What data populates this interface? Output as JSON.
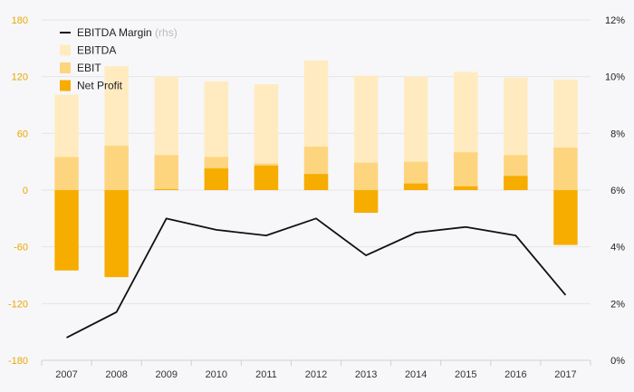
{
  "chart_data": {
    "type": "bar",
    "categories": [
      "2007",
      "2008",
      "2009",
      "2010",
      "2011",
      "2012",
      "2013",
      "2014",
      "2015",
      "2016",
      "2017"
    ],
    "series": [
      {
        "name": "EBITDA",
        "type": "bar",
        "axis": "left",
        "color": "#ffebbf",
        "values": [
          101,
          131,
          120,
          115,
          112,
          137,
          121,
          120,
          125,
          119,
          117
        ]
      },
      {
        "name": "EBIT",
        "type": "bar",
        "axis": "left",
        "color": "#fed57f",
        "values": [
          35,
          47,
          37,
          35,
          28,
          46,
          29,
          30,
          40,
          37,
          45
        ]
      },
      {
        "name": "Net Profit",
        "type": "bar",
        "axis": "left",
        "color": "#f7ac00",
        "values": [
          -85,
          -92,
          1,
          23,
          26,
          17,
          -24,
          7,
          4,
          15,
          -58
        ]
      },
      {
        "name": "EBITDA Margin",
        "note": "(rhs)",
        "type": "line",
        "axis": "right",
        "color": "#111111",
        "values": [
          0.8,
          1.7,
          5.0,
          4.6,
          4.4,
          5.0,
          3.7,
          4.5,
          4.7,
          4.4,
          2.3
        ]
      }
    ],
    "legend_order": [
      3,
      0,
      1,
      2
    ],
    "left_axis": {
      "ylim": [
        -180,
        180
      ],
      "ticks": [
        180,
        120,
        60,
        0,
        -60,
        -120,
        -180
      ],
      "tick_labels": [
        "180",
        "120",
        "60",
        "0",
        "-60",
        "-120",
        "-180"
      ]
    },
    "right_axis": {
      "ylim": [
        0,
        12
      ],
      "ticks": [
        12,
        10,
        8,
        6,
        4,
        2,
        0
      ],
      "tick_labels": [
        "12%",
        "10%",
        "8%",
        "6%",
        "4%",
        "2%",
        "0%"
      ]
    },
    "grid": true,
    "legend_position": "top-left",
    "colors": {
      "left_tick": "#e8a800",
      "right_tick": "#222222",
      "grid": "#e6e6e6",
      "background": "#f7f7f9"
    }
  }
}
